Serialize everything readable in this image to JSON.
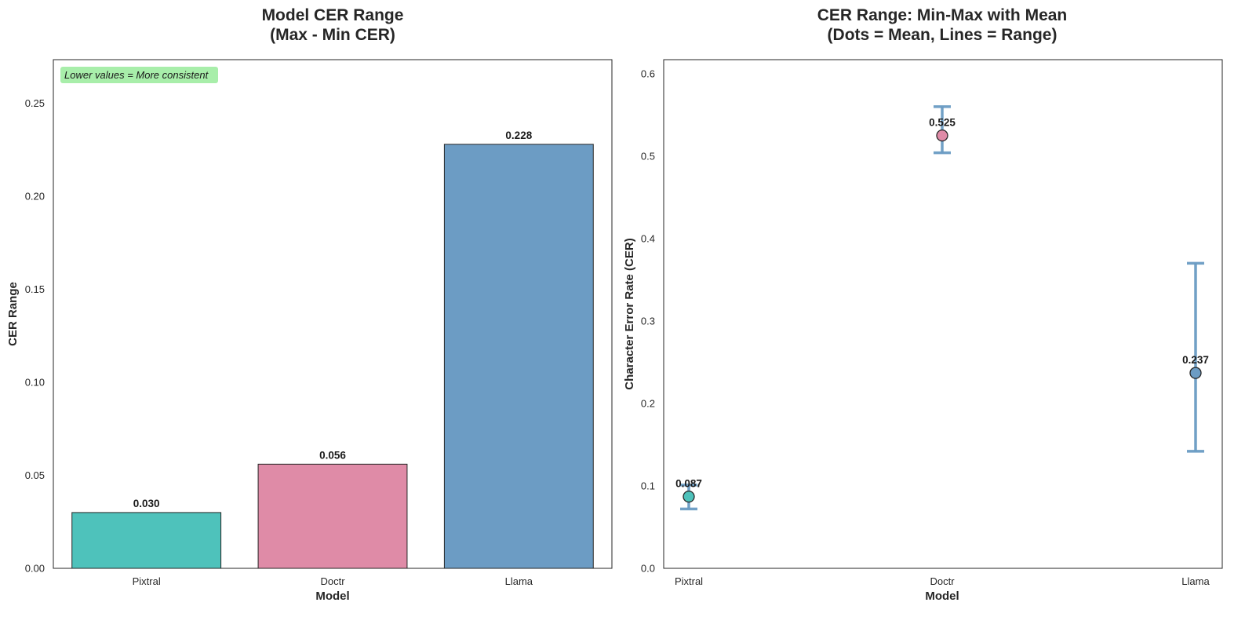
{
  "colors": {
    "pixtral": "#4ec2bb",
    "doctr": "#df8ba7",
    "llama": "#6c9cc4",
    "range_line": "#6a9bc3",
    "annotation_bg": "#a8eeaa",
    "edge": "#262626"
  },
  "chart_data": [
    {
      "type": "bar",
      "title_line1": "Model CER Range",
      "title_line2": "(Max - Min CER)",
      "xlabel": "Model",
      "ylabel": "CER Range",
      "ylim": [
        0,
        0.2735
      ],
      "yticks": [
        "0.00",
        "0.05",
        "0.10",
        "0.15",
        "0.20",
        "0.25"
      ],
      "ytick_values": [
        0,
        0.05,
        0.1,
        0.15,
        0.2,
        0.25
      ],
      "categories": [
        "Pixtral",
        "Doctr",
        "Llama"
      ],
      "values": [
        0.03,
        0.056,
        0.228
      ],
      "value_labels": [
        "0.030",
        "0.056",
        "0.228"
      ],
      "bar_colors": [
        "#4ec2bb",
        "#df8ba7",
        "#6c9cc4"
      ],
      "annotation": "Lower values = More consistent",
      "grid": false
    },
    {
      "type": "scatter",
      "title_line1": "CER Range: Min-Max with Mean",
      "title_line2": "(Dots = Mean, Lines = Range)",
      "xlabel": "Model",
      "ylabel": "Character Error Rate (CER)",
      "ylim": [
        0,
        0.617
      ],
      "yticks": [
        "0.0",
        "0.1",
        "0.2",
        "0.3",
        "0.4",
        "0.5",
        "0.6"
      ],
      "ytick_values": [
        0,
        0.1,
        0.2,
        0.3,
        0.4,
        0.5,
        0.6
      ],
      "categories": [
        "Pixtral",
        "Doctr",
        "Llama"
      ],
      "means": [
        0.087,
        0.525,
        0.237
      ],
      "mean_labels": [
        "0.087",
        "0.525",
        "0.237"
      ],
      "mins": [
        0.072,
        0.504,
        0.142
      ],
      "maxs": [
        0.101,
        0.56,
        0.37
      ],
      "point_colors": [
        "#4ec2bb",
        "#df8ba7",
        "#6c9cc4"
      ],
      "grid": false
    }
  ]
}
